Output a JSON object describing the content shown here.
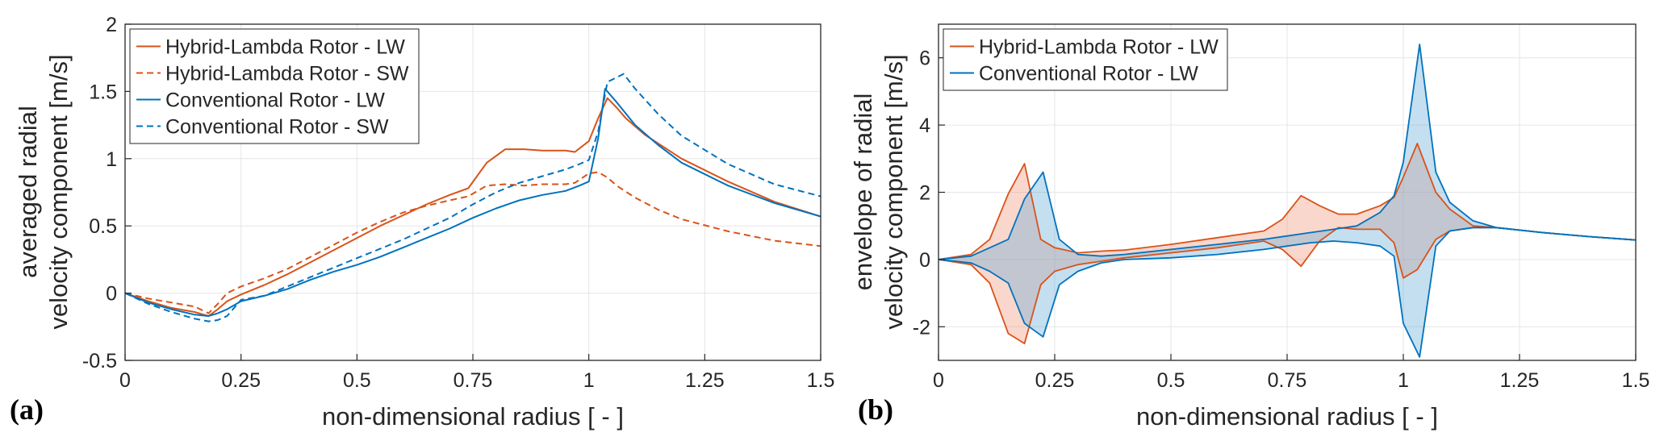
{
  "chart_data": [
    {
      "type": "line",
      "panel_label": "(a)",
      "xlabel": "non-dimensional radius [ - ]",
      "ylabel": [
        "averaged radial",
        "velocity component [m/s]"
      ],
      "xlim": [
        0,
        1.5
      ],
      "ylim": [
        -0.5,
        2
      ],
      "xticks": [
        0,
        0.25,
        0.5,
        0.75,
        1,
        1.25,
        1.5
      ],
      "xtick_labels": [
        "0",
        "0.25",
        "0.5",
        "0.75",
        "1",
        "1.25",
        "1.5"
      ],
      "yticks": [
        -0.5,
        0,
        0.5,
        1,
        1.5,
        2
      ],
      "ytick_labels": [
        "-0.5",
        "0",
        "0.5",
        "1",
        "1.5",
        "2"
      ],
      "grid": true,
      "legend_position": "top-left",
      "series": [
        {
          "name": "Hybrid-Lambda Rotor - LW",
          "color": "#D95319",
          "dash": "solid",
          "x": [
            0,
            0.05,
            0.1,
            0.15,
            0.18,
            0.2,
            0.22,
            0.25,
            0.3,
            0.35,
            0.4,
            0.45,
            0.5,
            0.55,
            0.6,
            0.65,
            0.7,
            0.74,
            0.78,
            0.82,
            0.86,
            0.9,
            0.95,
            0.97,
            1.0,
            1.02,
            1.04,
            1.06,
            1.08,
            1.12,
            1.2,
            1.3,
            1.4,
            1.5
          ],
          "y": [
            0,
            -0.06,
            -0.11,
            -0.14,
            -0.17,
            -0.12,
            -0.06,
            -0.01,
            0.06,
            0.14,
            0.23,
            0.32,
            0.41,
            0.5,
            0.58,
            0.66,
            0.73,
            0.78,
            0.97,
            1.07,
            1.07,
            1.06,
            1.06,
            1.05,
            1.13,
            1.3,
            1.45,
            1.38,
            1.3,
            1.18,
            1.0,
            0.83,
            0.68,
            0.57
          ]
        },
        {
          "name": "Hybrid-Lambda Rotor - SW",
          "color": "#D95319",
          "dash": "dashed",
          "x": [
            0,
            0.05,
            0.1,
            0.15,
            0.18,
            0.2,
            0.22,
            0.25,
            0.3,
            0.35,
            0.4,
            0.45,
            0.5,
            0.55,
            0.6,
            0.65,
            0.7,
            0.74,
            0.78,
            0.82,
            0.86,
            0.9,
            0.95,
            0.97,
            1.0,
            1.02,
            1.04,
            1.06,
            1.1,
            1.15,
            1.2,
            1.3,
            1.4,
            1.5
          ],
          "y": [
            0,
            -0.04,
            -0.07,
            -0.1,
            -0.15,
            -0.08,
            0.0,
            0.05,
            0.11,
            0.18,
            0.27,
            0.36,
            0.45,
            0.53,
            0.6,
            0.65,
            0.69,
            0.72,
            0.8,
            0.81,
            0.8,
            0.81,
            0.81,
            0.82,
            0.89,
            0.9,
            0.86,
            0.8,
            0.71,
            0.62,
            0.55,
            0.46,
            0.39,
            0.35
          ]
        },
        {
          "name": "Conventional Rotor - LW",
          "color": "#0072BD",
          "dash": "solid",
          "x": [
            0,
            0.05,
            0.1,
            0.15,
            0.18,
            0.2,
            0.22,
            0.25,
            0.3,
            0.35,
            0.4,
            0.45,
            0.5,
            0.55,
            0.6,
            0.65,
            0.7,
            0.75,
            0.8,
            0.85,
            0.9,
            0.95,
            0.98,
            1.0,
            1.02,
            1.035,
            1.06,
            1.1,
            1.15,
            1.2,
            1.3,
            1.4,
            1.5
          ],
          "y": [
            0,
            -0.07,
            -0.12,
            -0.16,
            -0.17,
            -0.15,
            -0.12,
            -0.06,
            -0.02,
            0.03,
            0.1,
            0.16,
            0.21,
            0.27,
            0.34,
            0.41,
            0.48,
            0.56,
            0.63,
            0.69,
            0.73,
            0.76,
            0.8,
            0.83,
            1.15,
            1.52,
            1.42,
            1.25,
            1.1,
            0.97,
            0.8,
            0.67,
            0.57
          ]
        },
        {
          "name": "Conventional Rotor - SW",
          "color": "#0072BD",
          "dash": "dashed",
          "x": [
            0,
            0.05,
            0.1,
            0.15,
            0.18,
            0.2,
            0.22,
            0.25,
            0.3,
            0.35,
            0.4,
            0.45,
            0.5,
            0.55,
            0.6,
            0.65,
            0.7,
            0.75,
            0.8,
            0.85,
            0.9,
            0.95,
            0.98,
            1.0,
            1.02,
            1.04,
            1.075,
            1.1,
            1.15,
            1.2,
            1.3,
            1.4,
            1.5
          ],
          "y": [
            0,
            -0.08,
            -0.14,
            -0.19,
            -0.21,
            -0.2,
            -0.17,
            -0.05,
            -0.02,
            0.05,
            0.12,
            0.19,
            0.26,
            0.33,
            0.4,
            0.48,
            0.56,
            0.66,
            0.75,
            0.82,
            0.87,
            0.92,
            0.96,
            0.99,
            1.2,
            1.57,
            1.63,
            1.52,
            1.33,
            1.17,
            0.96,
            0.81,
            0.72
          ]
        }
      ]
    },
    {
      "type": "area",
      "panel_label": "(b)",
      "xlabel": "non-dimensional radius [ - ]",
      "ylabel": [
        "envelope of radial",
        "velocity component [m/s]"
      ],
      "xlim": [
        0,
        1.5
      ],
      "ylim": [
        -3,
        7
      ],
      "xticks": [
        0,
        0.25,
        0.5,
        0.75,
        1,
        1.25,
        1.5
      ],
      "xtick_labels": [
        "0",
        "0.25",
        "0.5",
        "0.75",
        "1",
        "1.25",
        "1.5"
      ],
      "yticks": [
        -2,
        0,
        2,
        4,
        6
      ],
      "ytick_labels": [
        "-2",
        "0",
        "2",
        "4",
        "6"
      ],
      "grid": true,
      "legend_position": "top-left",
      "series": [
        {
          "name": "Hybrid-Lambda Rotor - LW",
          "color": "#D95319",
          "fill": "rgba(241,150,120,0.38)",
          "x": [
            0,
            0.07,
            0.11,
            0.15,
            0.185,
            0.22,
            0.25,
            0.3,
            0.35,
            0.4,
            0.5,
            0.6,
            0.7,
            0.74,
            0.78,
            0.82,
            0.86,
            0.9,
            0.95,
            0.98,
            1.0,
            1.03,
            1.07,
            1.1,
            1.15,
            1.2,
            1.3,
            1.4,
            1.5
          ],
          "upper": [
            0,
            0.15,
            0.6,
            1.95,
            2.85,
            0.6,
            0.35,
            0.2,
            0.25,
            0.28,
            0.45,
            0.65,
            0.85,
            1.2,
            1.9,
            1.6,
            1.35,
            1.35,
            1.6,
            1.85,
            2.45,
            3.45,
            2.0,
            1.5,
            1.0,
            0.95,
            0.8,
            0.68,
            0.58
          ],
          "lower": [
            0,
            -0.15,
            -0.7,
            -2.2,
            -2.5,
            -0.75,
            -0.35,
            -0.15,
            -0.05,
            0.05,
            0.2,
            0.35,
            0.55,
            0.3,
            -0.2,
            0.55,
            0.95,
            0.9,
            0.9,
            0.5,
            -0.55,
            -0.3,
            0.6,
            0.85,
            0.95,
            0.95,
            0.8,
            0.68,
            0.58
          ]
        },
        {
          "name": "Conventional Rotor - LW",
          "color": "#0072BD",
          "fill": "rgba(100,170,215,0.38)",
          "x": [
            0,
            0.07,
            0.11,
            0.15,
            0.185,
            0.225,
            0.26,
            0.3,
            0.35,
            0.4,
            0.5,
            0.6,
            0.7,
            0.75,
            0.8,
            0.85,
            0.9,
            0.95,
            0.98,
            1.0,
            1.035,
            1.07,
            1.1,
            1.15,
            1.2,
            1.3,
            1.4,
            1.5
          ],
          "upper": [
            0,
            0.1,
            0.35,
            0.6,
            1.8,
            2.6,
            0.6,
            0.15,
            0.1,
            0.15,
            0.3,
            0.45,
            0.6,
            0.7,
            0.8,
            0.9,
            1.0,
            1.4,
            1.9,
            2.9,
            6.4,
            2.6,
            1.7,
            1.15,
            0.95,
            0.8,
            0.68,
            0.58
          ],
          "lower": [
            0,
            -0.1,
            -0.35,
            -0.7,
            -1.9,
            -2.3,
            -0.75,
            -0.35,
            -0.1,
            0.0,
            0.05,
            0.15,
            0.3,
            0.4,
            0.5,
            0.55,
            0.5,
            0.4,
            0.1,
            -1.9,
            -2.9,
            0.4,
            0.85,
            0.95,
            0.95,
            0.8,
            0.68,
            0.58
          ]
        }
      ]
    }
  ]
}
